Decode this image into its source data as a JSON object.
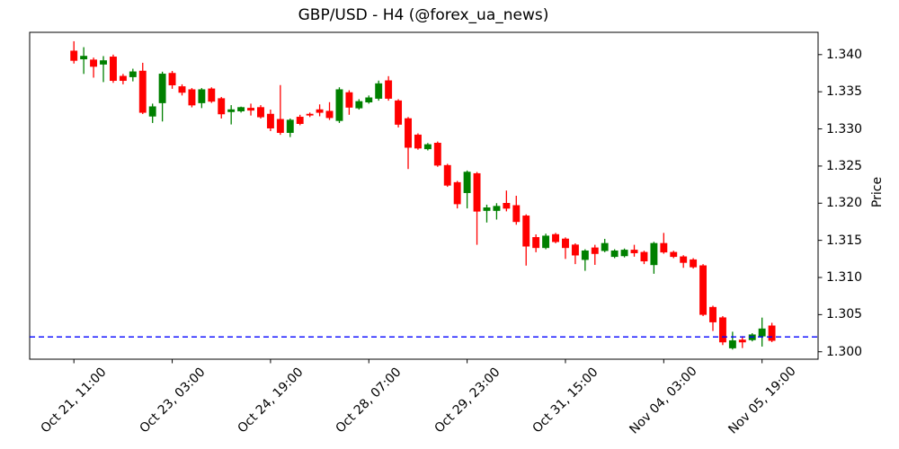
{
  "figure": {
    "title": "GBP/USD - H4 (@forex_ua_news)",
    "background": "#ffffff"
  },
  "chart_data": {
    "type": "candlestick",
    "title": "GBP/USD - H4 (@forex_ua_news)",
    "instrument": "GBP/USD",
    "timeframe": "H4",
    "ylabel": "Price",
    "grid": false,
    "legend": "none",
    "up_color": "#008000",
    "down_color": "#ff0000",
    "wick_matches_body_color": true,
    "ylim": [
      1.299,
      1.343
    ],
    "xlim": [
      -4.5,
      75.7
    ],
    "y_tick_labels": [
      "1.300",
      "1.305",
      "1.310",
      "1.315",
      "1.320",
      "1.325",
      "1.330",
      "1.335",
      "1.340"
    ],
    "y_tick_values": [
      1.3,
      1.305,
      1.31,
      1.315,
      1.32,
      1.325,
      1.33,
      1.335,
      1.34
    ],
    "x_ticks": [
      {
        "index": 0,
        "label": "Oct 21, 11:00"
      },
      {
        "index": 10,
        "label": "Oct 23, 03:00"
      },
      {
        "index": 20,
        "label": "Oct 24, 19:00"
      },
      {
        "index": 30,
        "label": "Oct 28, 07:00"
      },
      {
        "index": 40,
        "label": "Oct 29, 23:00"
      },
      {
        "index": 50,
        "label": "Oct 31, 15:00"
      },
      {
        "index": 60,
        "label": "Nov 04, 03:00"
      },
      {
        "index": 70,
        "label": "Nov 05, 19:00"
      }
    ],
    "hline": {
      "value": 1.302,
      "color": "#0000ff",
      "style": "dashed"
    },
    "candle_format": [
      "open",
      "high",
      "low",
      "close"
    ],
    "candles": [
      [
        1.3405,
        1.3418,
        1.3388,
        1.3392
      ],
      [
        1.3394,
        1.341,
        1.3374,
        1.3398
      ],
      [
        1.3393,
        1.3396,
        1.3369,
        1.3384
      ],
      [
        1.3387,
        1.3398,
        1.3363,
        1.3392
      ],
      [
        1.3397,
        1.34,
        1.3362,
        1.3365
      ],
      [
        1.3371,
        1.3374,
        1.336,
        1.3365
      ],
      [
        1.337,
        1.3381,
        1.3364,
        1.3377
      ],
      [
        1.3378,
        1.3389,
        1.332,
        1.3322
      ],
      [
        1.3317,
        1.3334,
        1.3308,
        1.333
      ],
      [
        1.3335,
        1.3377,
        1.331,
        1.3374
      ],
      [
        1.3375,
        1.3378,
        1.3354,
        1.3359
      ],
      [
        1.3357,
        1.336,
        1.3345,
        1.3349
      ],
      [
        1.3353,
        1.3355,
        1.3329,
        1.3332
      ],
      [
        1.3335,
        1.3355,
        1.3328,
        1.3353
      ],
      [
        1.3354,
        1.3356,
        1.3335,
        1.3337
      ],
      [
        1.3341,
        1.3343,
        1.3314,
        1.332
      ],
      [
        1.3323,
        1.3332,
        1.3306,
        1.3326
      ],
      [
        1.3324,
        1.333,
        1.3322,
        1.3329
      ],
      [
        1.3328,
        1.3334,
        1.3318,
        1.3325
      ],
      [
        1.3329,
        1.3332,
        1.3314,
        1.3316
      ],
      [
        1.332,
        1.3326,
        1.3297,
        1.3301
      ],
      [
        1.3313,
        1.3359,
        1.3292,
        1.3295
      ],
      [
        1.3295,
        1.3314,
        1.3289,
        1.3312
      ],
      [
        1.3316,
        1.3319,
        1.3305,
        1.3307
      ],
      [
        1.332,
        1.3322,
        1.3316,
        1.3319
      ],
      [
        1.3326,
        1.3333,
        1.3317,
        1.3322
      ],
      [
        1.3324,
        1.3336,
        1.3312,
        1.3315
      ],
      [
        1.3311,
        1.3356,
        1.3308,
        1.3353
      ],
      [
        1.3349,
        1.3352,
        1.3319,
        1.3329
      ],
      [
        1.3328,
        1.334,
        1.3326,
        1.3337
      ],
      [
        1.3336,
        1.3345,
        1.3334,
        1.3342
      ],
      [
        1.3341,
        1.3365,
        1.3338,
        1.3361
      ],
      [
        1.3365,
        1.3371,
        1.3338,
        1.3341
      ],
      [
        1.3338,
        1.334,
        1.3302,
        1.3306
      ],
      [
        1.3314,
        1.3316,
        1.3246,
        1.3275
      ],
      [
        1.3292,
        1.3294,
        1.3272,
        1.3274
      ],
      [
        1.3273,
        1.3281,
        1.3271,
        1.3279
      ],
      [
        1.3281,
        1.3283,
        1.3249,
        1.3251
      ],
      [
        1.3251,
        1.3253,
        1.3222,
        1.3224
      ],
      [
        1.3228,
        1.323,
        1.3193,
        1.3199
      ],
      [
        1.3214,
        1.3244,
        1.3193,
        1.3242
      ],
      [
        1.324,
        1.3242,
        1.3144,
        1.3189
      ],
      [
        1.319,
        1.3198,
        1.3174,
        1.3194
      ],
      [
        1.319,
        1.32,
        1.3178,
        1.3196
      ],
      [
        1.32,
        1.3217,
        1.3189,
        1.3193
      ],
      [
        1.3197,
        1.321,
        1.3171,
        1.3175
      ],
      [
        1.3183,
        1.3185,
        1.3116,
        1.3142
      ],
      [
        1.3154,
        1.3158,
        1.3134,
        1.314
      ],
      [
        1.314,
        1.3159,
        1.3138,
        1.3156
      ],
      [
        1.3158,
        1.316,
        1.3146,
        1.3148
      ],
      [
        1.3152,
        1.3154,
        1.3125,
        1.314
      ],
      [
        1.3144,
        1.3146,
        1.3118,
        1.313
      ],
      [
        1.3124,
        1.3138,
        1.3109,
        1.3136
      ],
      [
        1.314,
        1.3144,
        1.3117,
        1.3132
      ],
      [
        1.3136,
        1.3152,
        1.3134,
        1.3146
      ],
      [
        1.3128,
        1.3138,
        1.3126,
        1.3136
      ],
      [
        1.3129,
        1.3139,
        1.3127,
        1.3137
      ],
      [
        1.3137,
        1.3144,
        1.3128,
        1.3133
      ],
      [
        1.3134,
        1.3136,
        1.3118,
        1.3122
      ],
      [
        1.3117,
        1.3148,
        1.3105,
        1.3146
      ],
      [
        1.3146,
        1.316,
        1.3132,
        1.3134
      ],
      [
        1.3134,
        1.3136,
        1.3126,
        1.3128
      ],
      [
        1.3128,
        1.313,
        1.3113,
        1.312
      ],
      [
        1.3124,
        1.3126,
        1.3112,
        1.3114
      ],
      [
        1.3116,
        1.3118,
        1.3048,
        1.305
      ],
      [
        1.306,
        1.3062,
        1.3028,
        1.304
      ],
      [
        1.3046,
        1.3048,
        1.3009,
        1.3013
      ],
      [
        1.3005,
        1.3027,
        1.3003,
        1.3015
      ],
      [
        1.3016,
        1.3021,
        1.3005,
        1.3013
      ],
      [
        1.3016,
        1.3025,
        1.3014,
        1.3023
      ],
      [
        1.3021,
        1.3046,
        1.3007,
        1.3031
      ],
      [
        1.3035,
        1.3039,
        1.3013,
        1.3015
      ]
    ]
  }
}
